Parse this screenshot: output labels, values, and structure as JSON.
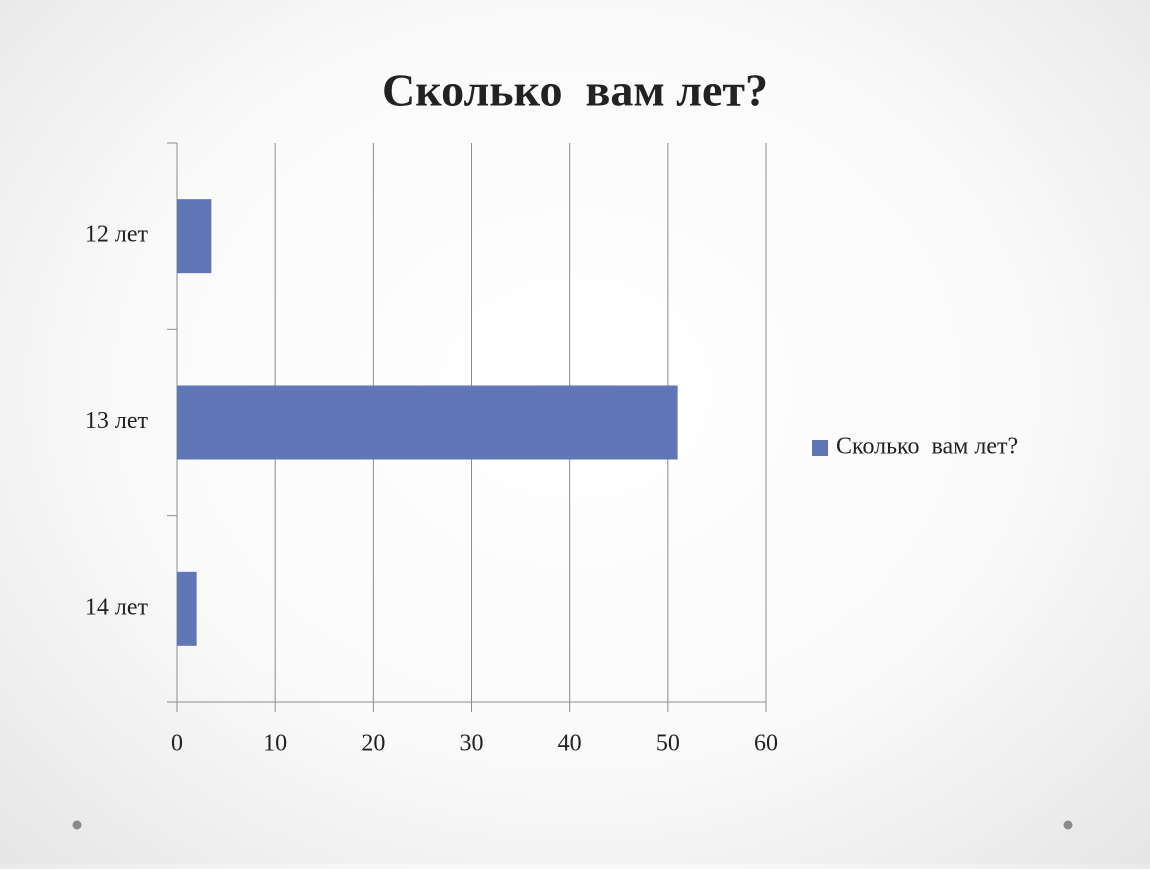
{
  "chart_data": {
    "type": "bar",
    "orientation": "horizontal",
    "title": "Сколько  вам лет?",
    "categories": [
      "12 лет",
      "13 лет",
      "14 лет"
    ],
    "series": [
      {
        "name": "Сколько  вам лет?",
        "color": "#6176b6",
        "values": [
          3.5,
          51,
          2
        ]
      }
    ],
    "xlim": [
      0,
      60
    ],
    "xticks": [
      0,
      10,
      20,
      30,
      40,
      50,
      60
    ],
    "grid": true,
    "legend": "right"
  }
}
